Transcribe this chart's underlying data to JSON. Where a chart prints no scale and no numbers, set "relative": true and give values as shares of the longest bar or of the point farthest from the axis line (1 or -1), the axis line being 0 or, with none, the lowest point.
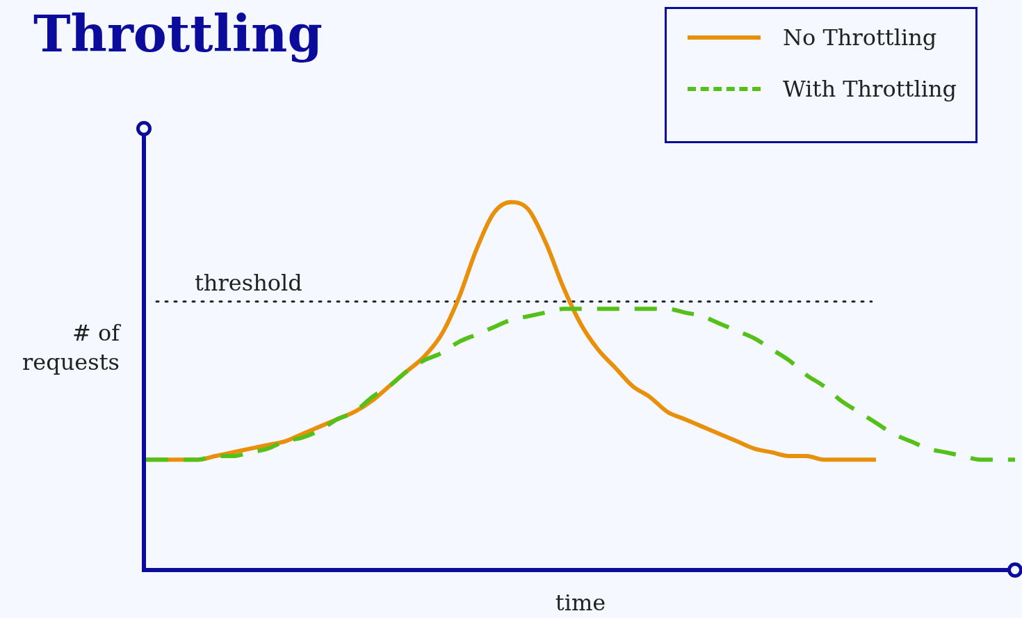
{
  "chart_data": {
    "type": "line",
    "title": "Throttling",
    "xlabel": "time",
    "ylabel": "# of requests",
    "relative": true,
    "legend": "top right",
    "marker": "none",
    "categories": [
      null,
      null,
      null,
      null,
      null,
      null,
      null,
      null,
      null,
      null,
      null,
      null,
      null,
      null,
      null,
      null,
      null,
      null,
      null,
      null,
      null,
      null,
      null,
      null,
      null,
      null,
      null,
      null,
      null,
      null,
      null,
      null,
      null,
      null,
      null,
      null,
      null,
      null,
      null,
      null,
      null,
      null,
      null,
      null,
      null,
      null,
      null,
      null,
      null,
      null,
      null
    ],
    "ref_lines": [
      {
        "axis": "y",
        "value": 0.73,
        "label": "threshold",
        "color": "#222222",
        "line_style": "dotted"
      }
    ],
    "series": [
      {
        "name": "No Throttling",
        "color": "#e8900c",
        "line_style": "solid",
        "values": [
          0.3,
          0.3,
          0.3,
          0.3,
          0.31,
          0.32,
          0.33,
          0.34,
          0.35,
          0.37,
          0.39,
          0.41,
          0.43,
          0.46,
          0.5,
          0.54,
          0.58,
          0.64,
          0.74,
          0.87,
          0.97,
          1,
          0.98,
          0.89,
          0.77,
          0.67,
          0.6,
          0.55,
          0.5,
          0.47,
          0.43,
          0.41,
          0.39,
          0.37,
          0.35,
          0.33,
          0.32,
          0.31,
          0.31,
          0.3,
          0.3,
          0.3,
          0.3,
          null,
          null,
          null,
          null,
          null,
          null,
          null,
          null
        ]
      },
      {
        "name": "With Throttling",
        "color": "#55c01a",
        "line_style": "dashed",
        "values": [
          0.3,
          0.3,
          0.3,
          0.3,
          0.31,
          0.31,
          0.32,
          0.33,
          0.35,
          0.36,
          0.38,
          0.41,
          0.43,
          0.47,
          0.5,
          0.54,
          0.57,
          0.59,
          0.62,
          0.64,
          0.66,
          0.68,
          0.69,
          0.7,
          0.71,
          0.71,
          0.71,
          0.71,
          0.71,
          0.71,
          0.71,
          0.7,
          0.69,
          0.67,
          0.65,
          0.63,
          0.6,
          0.57,
          0.53,
          0.5,
          0.46,
          0.43,
          0.4,
          0.37,
          0.35,
          0.33,
          0.32,
          0.31,
          0.3,
          0.3,
          0.3
        ]
      }
    ]
  }
}
